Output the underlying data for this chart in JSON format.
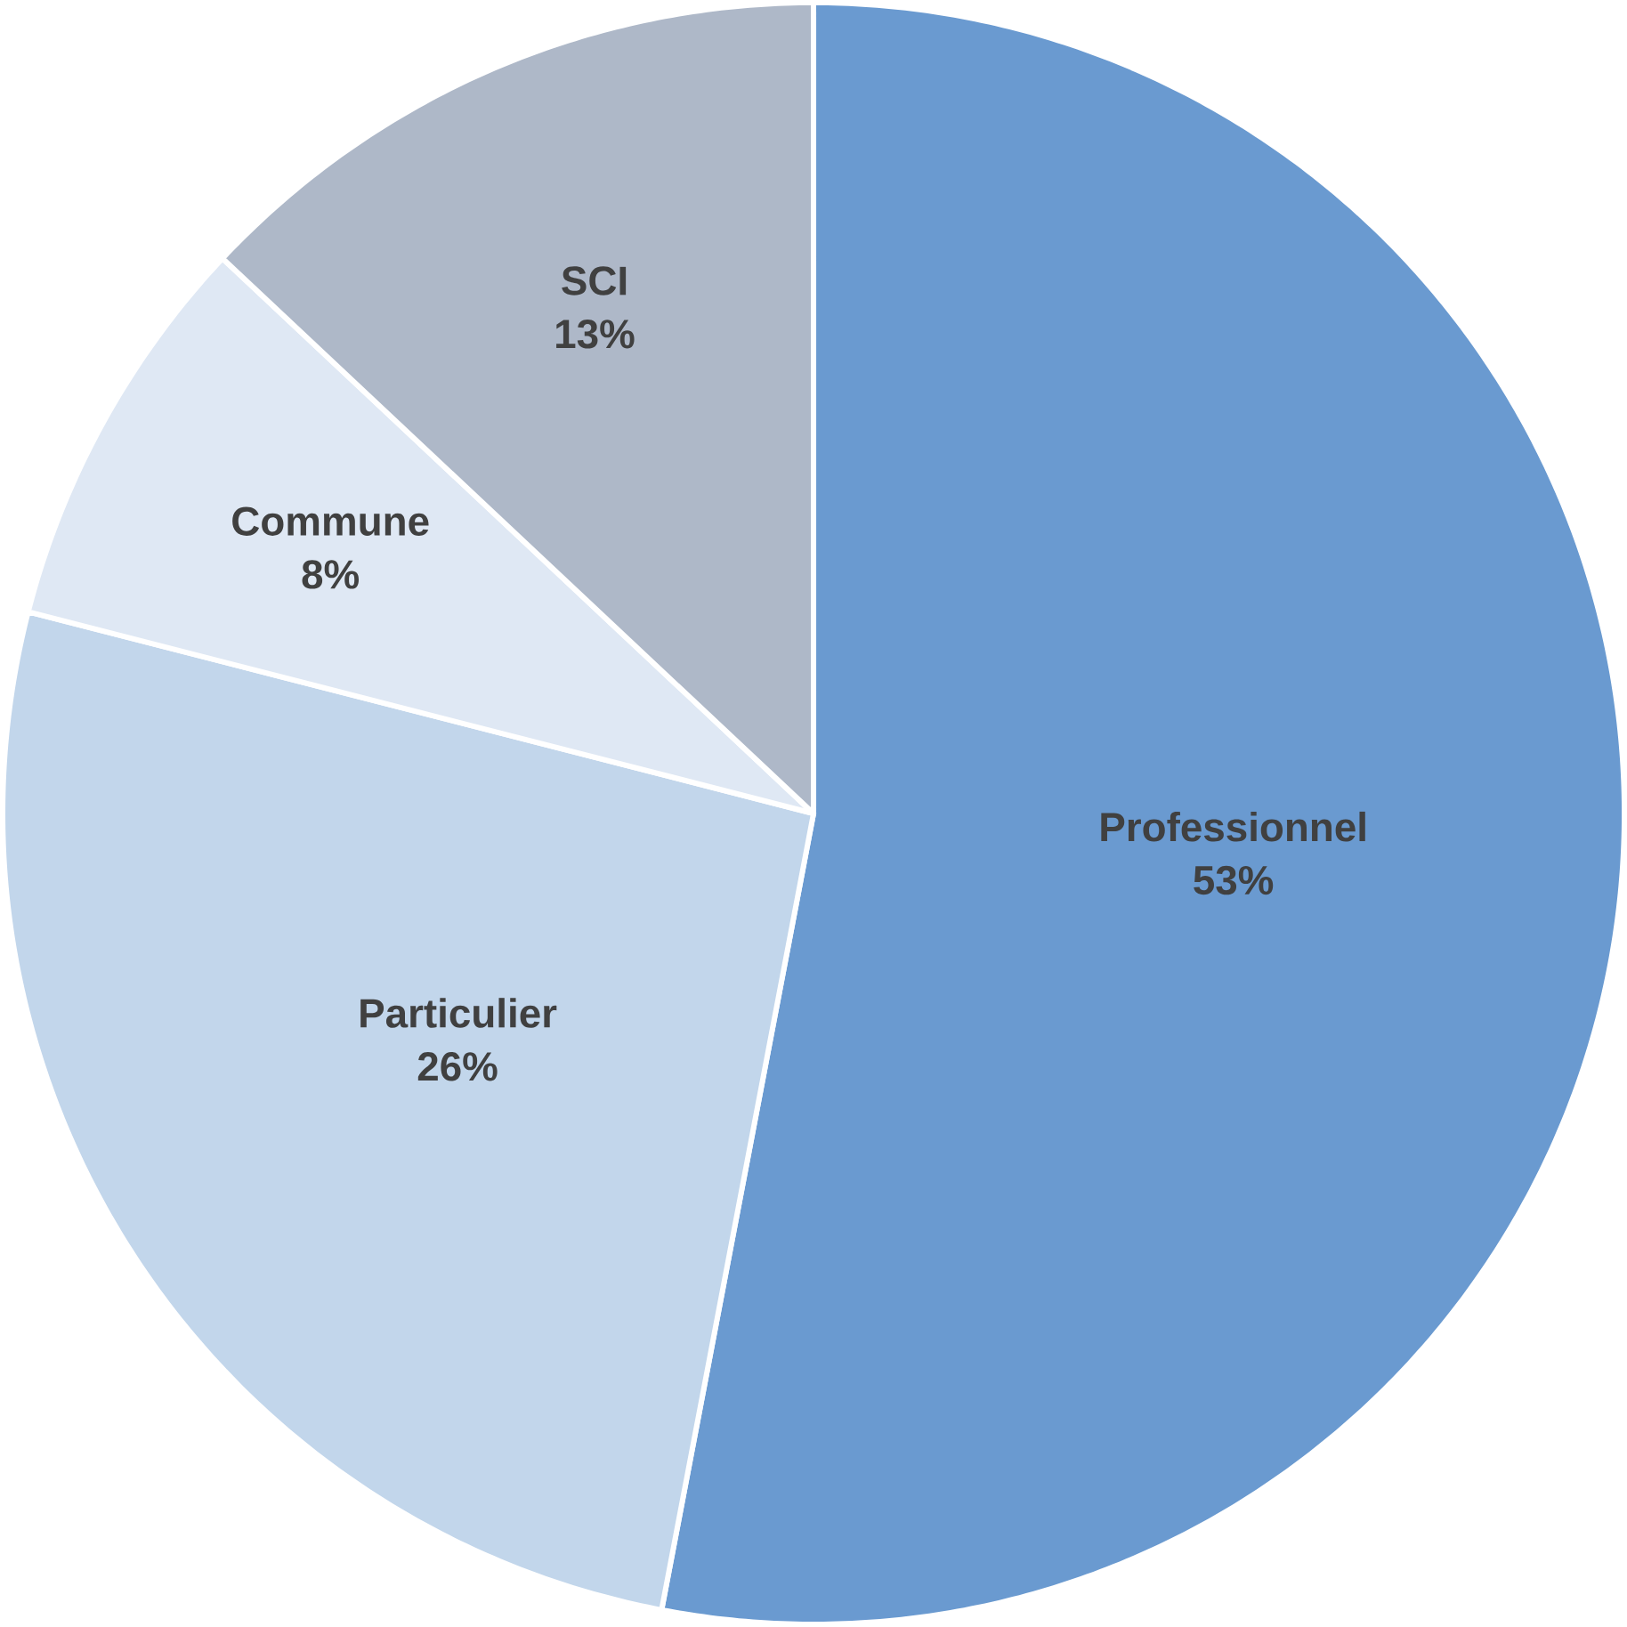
{
  "chart_data": {
    "type": "pie",
    "categories": [
      "Professionnel",
      "Particulier",
      "Commune",
      "SCI"
    ],
    "values": [
      53,
      26,
      8,
      13
    ],
    "value_labels": [
      "53%",
      "26%",
      "8%",
      "13%"
    ],
    "colors": [
      "#6a9ad0",
      "#c2d6eb",
      "#dfe8f4",
      "#aeb8c8"
    ]
  }
}
